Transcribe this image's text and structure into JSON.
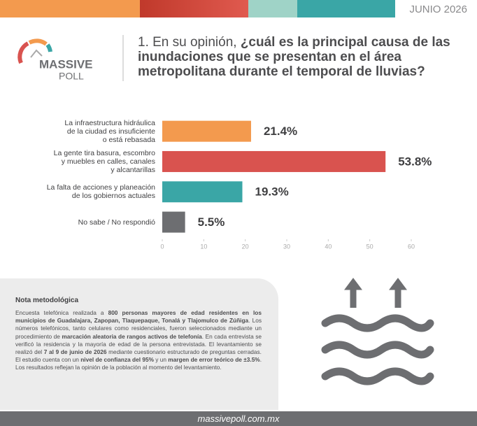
{
  "header": {
    "date": "JUNIO 2026"
  },
  "logo": {
    "name": "MASSIVE",
    "sub": "POLL"
  },
  "question": {
    "lines": [
      [
        "1. En su opinión, ",
        "¿cuál es la principal causa de las"
      ],
      [
        "",
        "inundaciones que se presentan en el área"
      ],
      [
        "",
        "metropolitana durante el temporal de lluvias?"
      ]
    ]
  },
  "chart_data": {
    "type": "bar",
    "orientation": "horizontal",
    "categories": [
      "La infraestructura hidráulica\nde la ciudad es insuficiente\no está rebasada",
      "La gente tira basura, escombro\ny muebles en calles, canales\ny alcantarillas",
      "La falta de acciones y planeación\nde los gobiernos actuales",
      "No sabe / No respondió"
    ],
    "values": [
      21.4,
      53.8,
      19.3,
      5.5
    ],
    "value_labels": [
      "21.4%",
      "53.8%",
      "19.3%",
      "5.5%"
    ],
    "colors": [
      "#f39a4e",
      "#d9534f",
      "#3aa6a6",
      "#6d6e71"
    ],
    "xlim": [
      0,
      60
    ],
    "xticks": [
      0,
      10,
      20,
      30,
      40,
      50,
      60
    ]
  },
  "note": {
    "title": "Nota metodológica",
    "segments": [
      "Encuesta telefónica realizada a ",
      "800 personas mayores de edad residentes en los municipios de Guadalajara, Zapopan, Tlaquepaque, Tonalá y Tlajomulco de Zúñiga",
      ". Los números telefónicos, tanto celulares como residenciales, fueron seleccionados mediante un procedimiento de ",
      "marcación aleatoria de rangos activos de telefonía",
      ". En cada entrevista se verificó la residencia y la mayoría de edad de la persona entrevistada. El levantamiento se realizó del ",
      "7 al 9 de junio de 2026",
      " mediante cuestionario estructurado de preguntas cerradas. El estudio cuenta con un ",
      "nivel de confianza del 95%",
      " y un ",
      "margen de error teórico de ±3.5%",
      ". Los resultados reflejan la opinión de la población al momento del levantamiento."
    ]
  },
  "footer": {
    "url": "massivepoll.com.mx"
  }
}
